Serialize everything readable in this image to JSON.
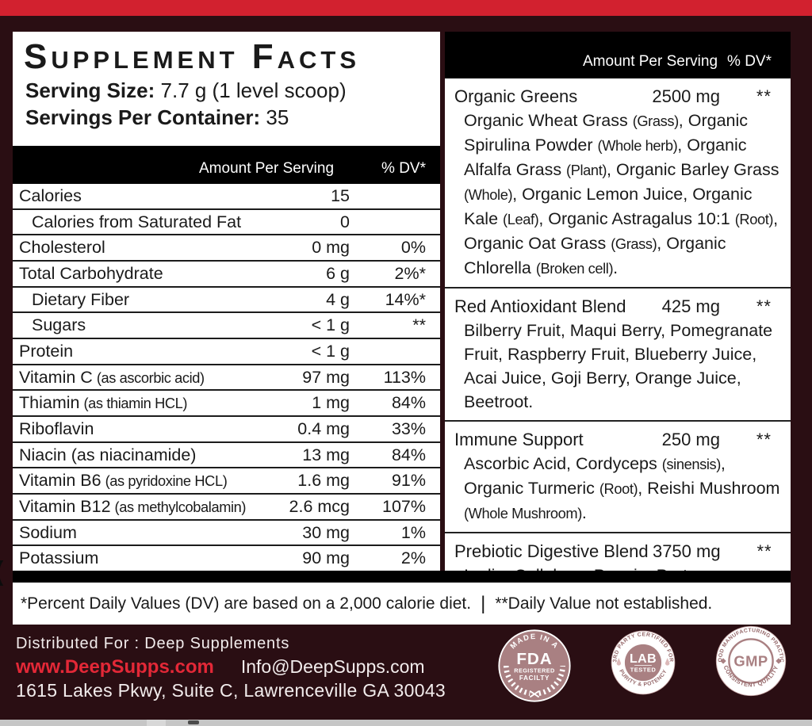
{
  "colors": {
    "top_bar_red": "#d2212f",
    "background_maroon": "#2a0e13",
    "link_red": "#e32837",
    "badge_mauve": "#a98082"
  },
  "label": {
    "title": "Supplement Facts",
    "serving_size_label": "Serving Size:",
    "serving_size_value": " 7.7 g (1 level scoop)",
    "servings_label": "Servings Per Container:",
    "servings_value": " 35",
    "column_header": {
      "amount": "Amount Per Serving",
      "dv": "% DV*"
    },
    "left_rows": [
      {
        "name": "Calories",
        "note": "",
        "amount": "15",
        "dv": ""
      },
      {
        "name": "Calories from Saturated Fat",
        "note": "",
        "amount": "0",
        "dv": ""
      },
      {
        "name": "Cholesterol",
        "note": "",
        "amount": "0 mg",
        "dv": "0%"
      },
      {
        "name": "Total Carbohydrate",
        "note": "",
        "amount": "6 g",
        "dv": "2%*"
      },
      {
        "name": "Dietary Fiber",
        "note": "",
        "amount": "4 g",
        "dv": "14%*"
      },
      {
        "name": "Sugars",
        "note": "",
        "amount": "< 1 g",
        "dv": "**"
      },
      {
        "name": "Protein",
        "note": "",
        "amount": "< 1 g",
        "dv": ""
      },
      {
        "name": "Vitamin C",
        "note": "(as ascorbic acid)",
        "amount": "97 mg",
        "dv": "113%"
      },
      {
        "name": "Thiamin",
        "note": "(as thiamin HCL)",
        "amount": "1 mg",
        "dv": "84%"
      },
      {
        "name": "Riboflavin",
        "note": "",
        "amount": "0.4 mg",
        "dv": "33%"
      },
      {
        "name": "Niacin (as niacinamide)",
        "note": "",
        "amount": "13 mg",
        "dv": "84%"
      },
      {
        "name": "Vitamin B6",
        "note": "(as pyridoxine HCL)",
        "amount": "1.6 mg",
        "dv": "91%"
      },
      {
        "name": "Vitamin B12",
        "note": "(as methylcobalamin)",
        "amount": "2.6 mcg",
        "dv": "107%"
      },
      {
        "name": "Sodium",
        "note": "",
        "amount": "30 mg",
        "dv": "1%"
      },
      {
        "name": "Potassium",
        "note": "",
        "amount": "90 mg",
        "dv": "2%"
      }
    ],
    "right_sections": [
      {
        "name": "Organic Greens",
        "amount": "2500 mg",
        "dv": "**",
        "ingredients": "Organic Wheat Grass (Grass), Organic Spirulina Powder (Whole herb), Organic Alfalfa Grass (Plant), Organic Barley Grass (Whole), Organic Lemon Juice, Organic Kale (Leaf), Organic Astragalus 10:1 (Root), Organic Oat Grass (Grass), Organic Chlorella (Broken cell)."
      },
      {
        "name": "Red Antioxidant Blend",
        "amount": "425 mg",
        "dv": "**",
        "ingredients": "Bilberry Fruit, Maqui Berry, Pomegranate Fruit, Raspberry Fruit, Blueberry Juice, Acai Juice, Goji Berry, Orange Juice, Beetroot."
      },
      {
        "name": "Immune Support",
        "amount": "250 mg",
        "dv": "**",
        "ingredients": "Ascorbic Acid, Cordyceps (sinensis), Organic Turmeric (Root), Reishi Mushroom (Whole Mushroom)."
      },
      {
        "name": "Prebiotic Digestive Blend",
        "amount": "3750 mg",
        "dv": "**",
        "ingredients": "Inulin, Cellulase, Papain, Protease, Lipase."
      }
    ],
    "footnote_left": "*Percent Daily Values (DV) are based on a 2,000 calorie diet.",
    "footnote_divider": "|",
    "footnote_right": "**Daily Value not established."
  },
  "footer": {
    "distributed": "Distributed For : Deep Supplements",
    "website": "www.DeepSupps.com",
    "email": "Info@DeepSupps.com",
    "address": "1615 Lakes Pkwy, Suite C, Lawrenceville GA 30043",
    "badges": [
      {
        "id": "fda",
        "top_arc": "MADE IN A",
        "line1": "FDA",
        "line2": "REGISTERED",
        "line3": "FACILTY"
      },
      {
        "id": "lab",
        "top_arc": "3RD PARTY CERTIFIED FOR",
        "center1": "LAB",
        "center2": "TESTED",
        "bottom_arc": "PURITY & POTENCY"
      },
      {
        "id": "gmp",
        "top_arc": "GOOD MANUFACTURING PRACTICE",
        "center": "GMP",
        "bottom_arc": "CONSISTENT QUALITY"
      }
    ]
  },
  "artifacts": {
    "edge_glyph": "("
  }
}
